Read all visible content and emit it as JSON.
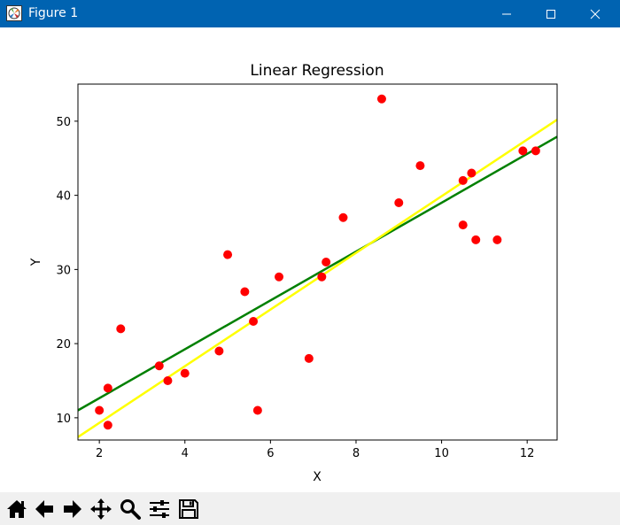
{
  "window": {
    "title": "Figure 1",
    "icons": {
      "app": "matplotlib-figure-icon",
      "minimize": "minimize-icon",
      "maximize": "maximize-icon",
      "close": "close-icon"
    }
  },
  "toolbar": {
    "items": [
      {
        "icon": "home-icon",
        "name": "Home"
      },
      {
        "icon": "back-arrow-icon",
        "name": "Back"
      },
      {
        "icon": "forward-arrow-icon",
        "name": "Forward"
      },
      {
        "icon": "pan-icon",
        "name": "Pan"
      },
      {
        "icon": "zoom-icon",
        "name": "Zoom"
      },
      {
        "icon": "configure-subplots-icon",
        "name": "Configure subplots"
      },
      {
        "icon": "save-icon",
        "name": "Save"
      }
    ]
  },
  "chart_data": {
    "type": "scatter",
    "title": "Linear Regression",
    "xlabel": "X",
    "ylabel": "Y",
    "xlim": [
      1.5,
      12.7
    ],
    "ylim": [
      7,
      55
    ],
    "xticks": [
      2,
      4,
      6,
      8,
      10,
      12
    ],
    "yticks": [
      10,
      20,
      30,
      40,
      50
    ],
    "grid": false,
    "points": {
      "color": "#ff0000",
      "x": [
        2.0,
        2.2,
        2.2,
        2.5,
        3.4,
        3.6,
        4.0,
        4.8,
        5.0,
        5.4,
        5.6,
        5.7,
        6.2,
        6.9,
        7.2,
        7.3,
        7.7,
        8.6,
        9.0,
        9.5,
        10.5,
        10.5,
        10.7,
        10.8,
        11.3,
        11.9,
        12.2
      ],
      "y": [
        11,
        14,
        9,
        22,
        17,
        15,
        16,
        19,
        32,
        27,
        23,
        11,
        29,
        18,
        29,
        31,
        37,
        53,
        39,
        44,
        42,
        36,
        43,
        34,
        34,
        46,
        46
      ]
    },
    "lines": [
      {
        "color": "#008000",
        "x": [
          1.5,
          12.7
        ],
        "y": [
          11.0,
          47.9
        ]
      },
      {
        "color": "#ffff00",
        "x": [
          1.5,
          12.7
        ],
        "y": [
          7.4,
          50.2
        ]
      }
    ]
  }
}
